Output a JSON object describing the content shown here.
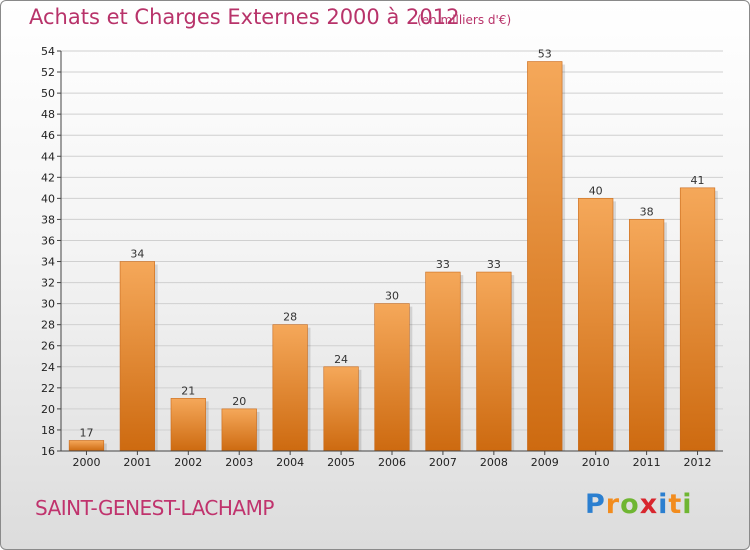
{
  "header": {
    "title": "Achats et Charges Externes 2000 à 2012",
    "unit": "(en milliers d'€)"
  },
  "commune": "SAINT-GENEST-LACHAMP",
  "logo": {
    "text": "Proxiti",
    "letters": [
      "P",
      "r",
      "o",
      "x",
      "i",
      "t",
      "i"
    ],
    "colors": [
      "#2b7fd0",
      "#f28c1e",
      "#6fb632",
      "#d8262e",
      "#2b7fd0",
      "#f28c1e",
      "#6fb632"
    ]
  },
  "colors": {
    "title": "#b8336a",
    "bar_light": "#f5a85a",
    "bar_dark": "#cd6a10",
    "grid": "#d0d0d0"
  },
  "chart_data": {
    "type": "bar",
    "categories": [
      "2000",
      "2001",
      "2002",
      "2003",
      "2004",
      "2005",
      "2006",
      "2007",
      "2008",
      "2009",
      "2010",
      "2011",
      "2012"
    ],
    "values": [
      17,
      34,
      21,
      20,
      28,
      24,
      30,
      33,
      33,
      53,
      40,
      38,
      41
    ],
    "ylim": [
      16,
      54
    ],
    "yticks": [
      16,
      18,
      20,
      22,
      24,
      26,
      28,
      30,
      32,
      34,
      36,
      38,
      40,
      42,
      44,
      46,
      48,
      50,
      52,
      54
    ],
    "title": "Achats et Charges Externes 2000 à 2012",
    "xlabel": "",
    "ylabel": "",
    "grid": true
  }
}
